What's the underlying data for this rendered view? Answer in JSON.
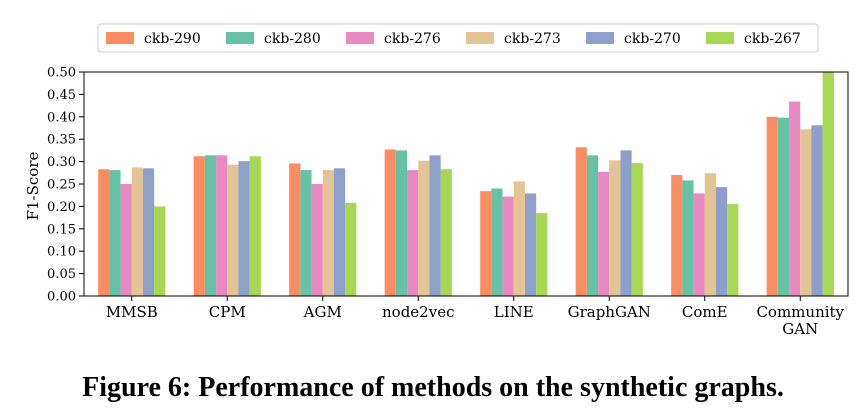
{
  "caption": "Figure 6: Performance of methods on the synthetic graphs.",
  "chart_data": {
    "type": "bar",
    "title": "",
    "xlabel": "",
    "ylabel": "F1-Score",
    "ylim": [
      0,
      0.5
    ],
    "yticks": [
      "0.00",
      "0.05",
      "0.10",
      "0.15",
      "0.20",
      "0.25",
      "0.30",
      "0.35",
      "0.40",
      "0.45",
      "0.50"
    ],
    "grid": false,
    "legend_position": "top",
    "categories": [
      [
        "MMSB"
      ],
      [
        "CPM"
      ],
      [
        "AGM"
      ],
      [
        "node2vec"
      ],
      [
        "LINE"
      ],
      [
        "GraphGAN"
      ],
      [
        "ComE"
      ],
      [
        "Community",
        "GAN"
      ]
    ],
    "series": [
      {
        "name": "ckb-290",
        "color": "#fc8d62",
        "values": [
          0.283,
          0.312,
          0.296,
          0.327,
          0.234,
          0.332,
          0.27,
          0.4
        ]
      },
      {
        "name": "ckb-280",
        "color": "#66c2a5",
        "values": [
          0.281,
          0.314,
          0.281,
          0.325,
          0.24,
          0.314,
          0.258,
          0.398
        ]
      },
      {
        "name": "ckb-276",
        "color": "#e78ac3",
        "values": [
          0.25,
          0.314,
          0.25,
          0.281,
          0.222,
          0.277,
          0.229,
          0.434
        ]
      },
      {
        "name": "ckb-273",
        "color": "#e5c494",
        "values": [
          0.287,
          0.293,
          0.281,
          0.302,
          0.256,
          0.303,
          0.274,
          0.372
        ]
      },
      {
        "name": "ckb-270",
        "color": "#8da0cb",
        "values": [
          0.285,
          0.301,
          0.285,
          0.314,
          0.229,
          0.325,
          0.243,
          0.381
        ]
      },
      {
        "name": "ckb-267",
        "color": "#a6d854",
        "values": [
          0.2,
          0.312,
          0.208,
          0.283,
          0.185,
          0.297,
          0.205,
          0.5
        ]
      }
    ]
  }
}
